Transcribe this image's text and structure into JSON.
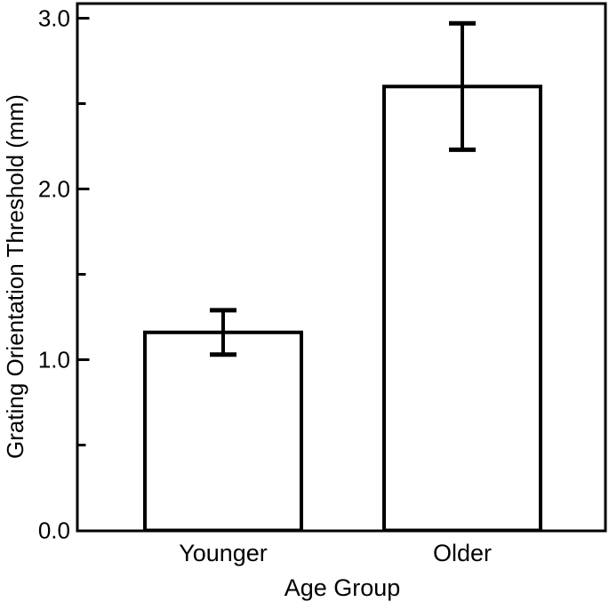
{
  "chart_data": {
    "type": "bar",
    "title": "",
    "categories": [
      "Younger",
      "Older"
    ],
    "values": [
      1.16,
      2.6
    ],
    "errors": [
      0.13,
      0.37
    ],
    "xlabel": "Age Group",
    "ylabel": "Grating Orientation Threshold (mm)",
    "ylim": [
      0.0,
      3.09
    ],
    "yticks": [
      0.0,
      1.0,
      2.0,
      3.0
    ],
    "ytick_labels": [
      "0.0",
      "1.0",
      "2.0",
      "3.0"
    ],
    "yminorticks": [
      0.5,
      1.5,
      2.5
    ],
    "grid": false,
    "legend": null,
    "bar_fill": "#ffffff",
    "line_color": "#000000",
    "background": "#ffffff"
  }
}
